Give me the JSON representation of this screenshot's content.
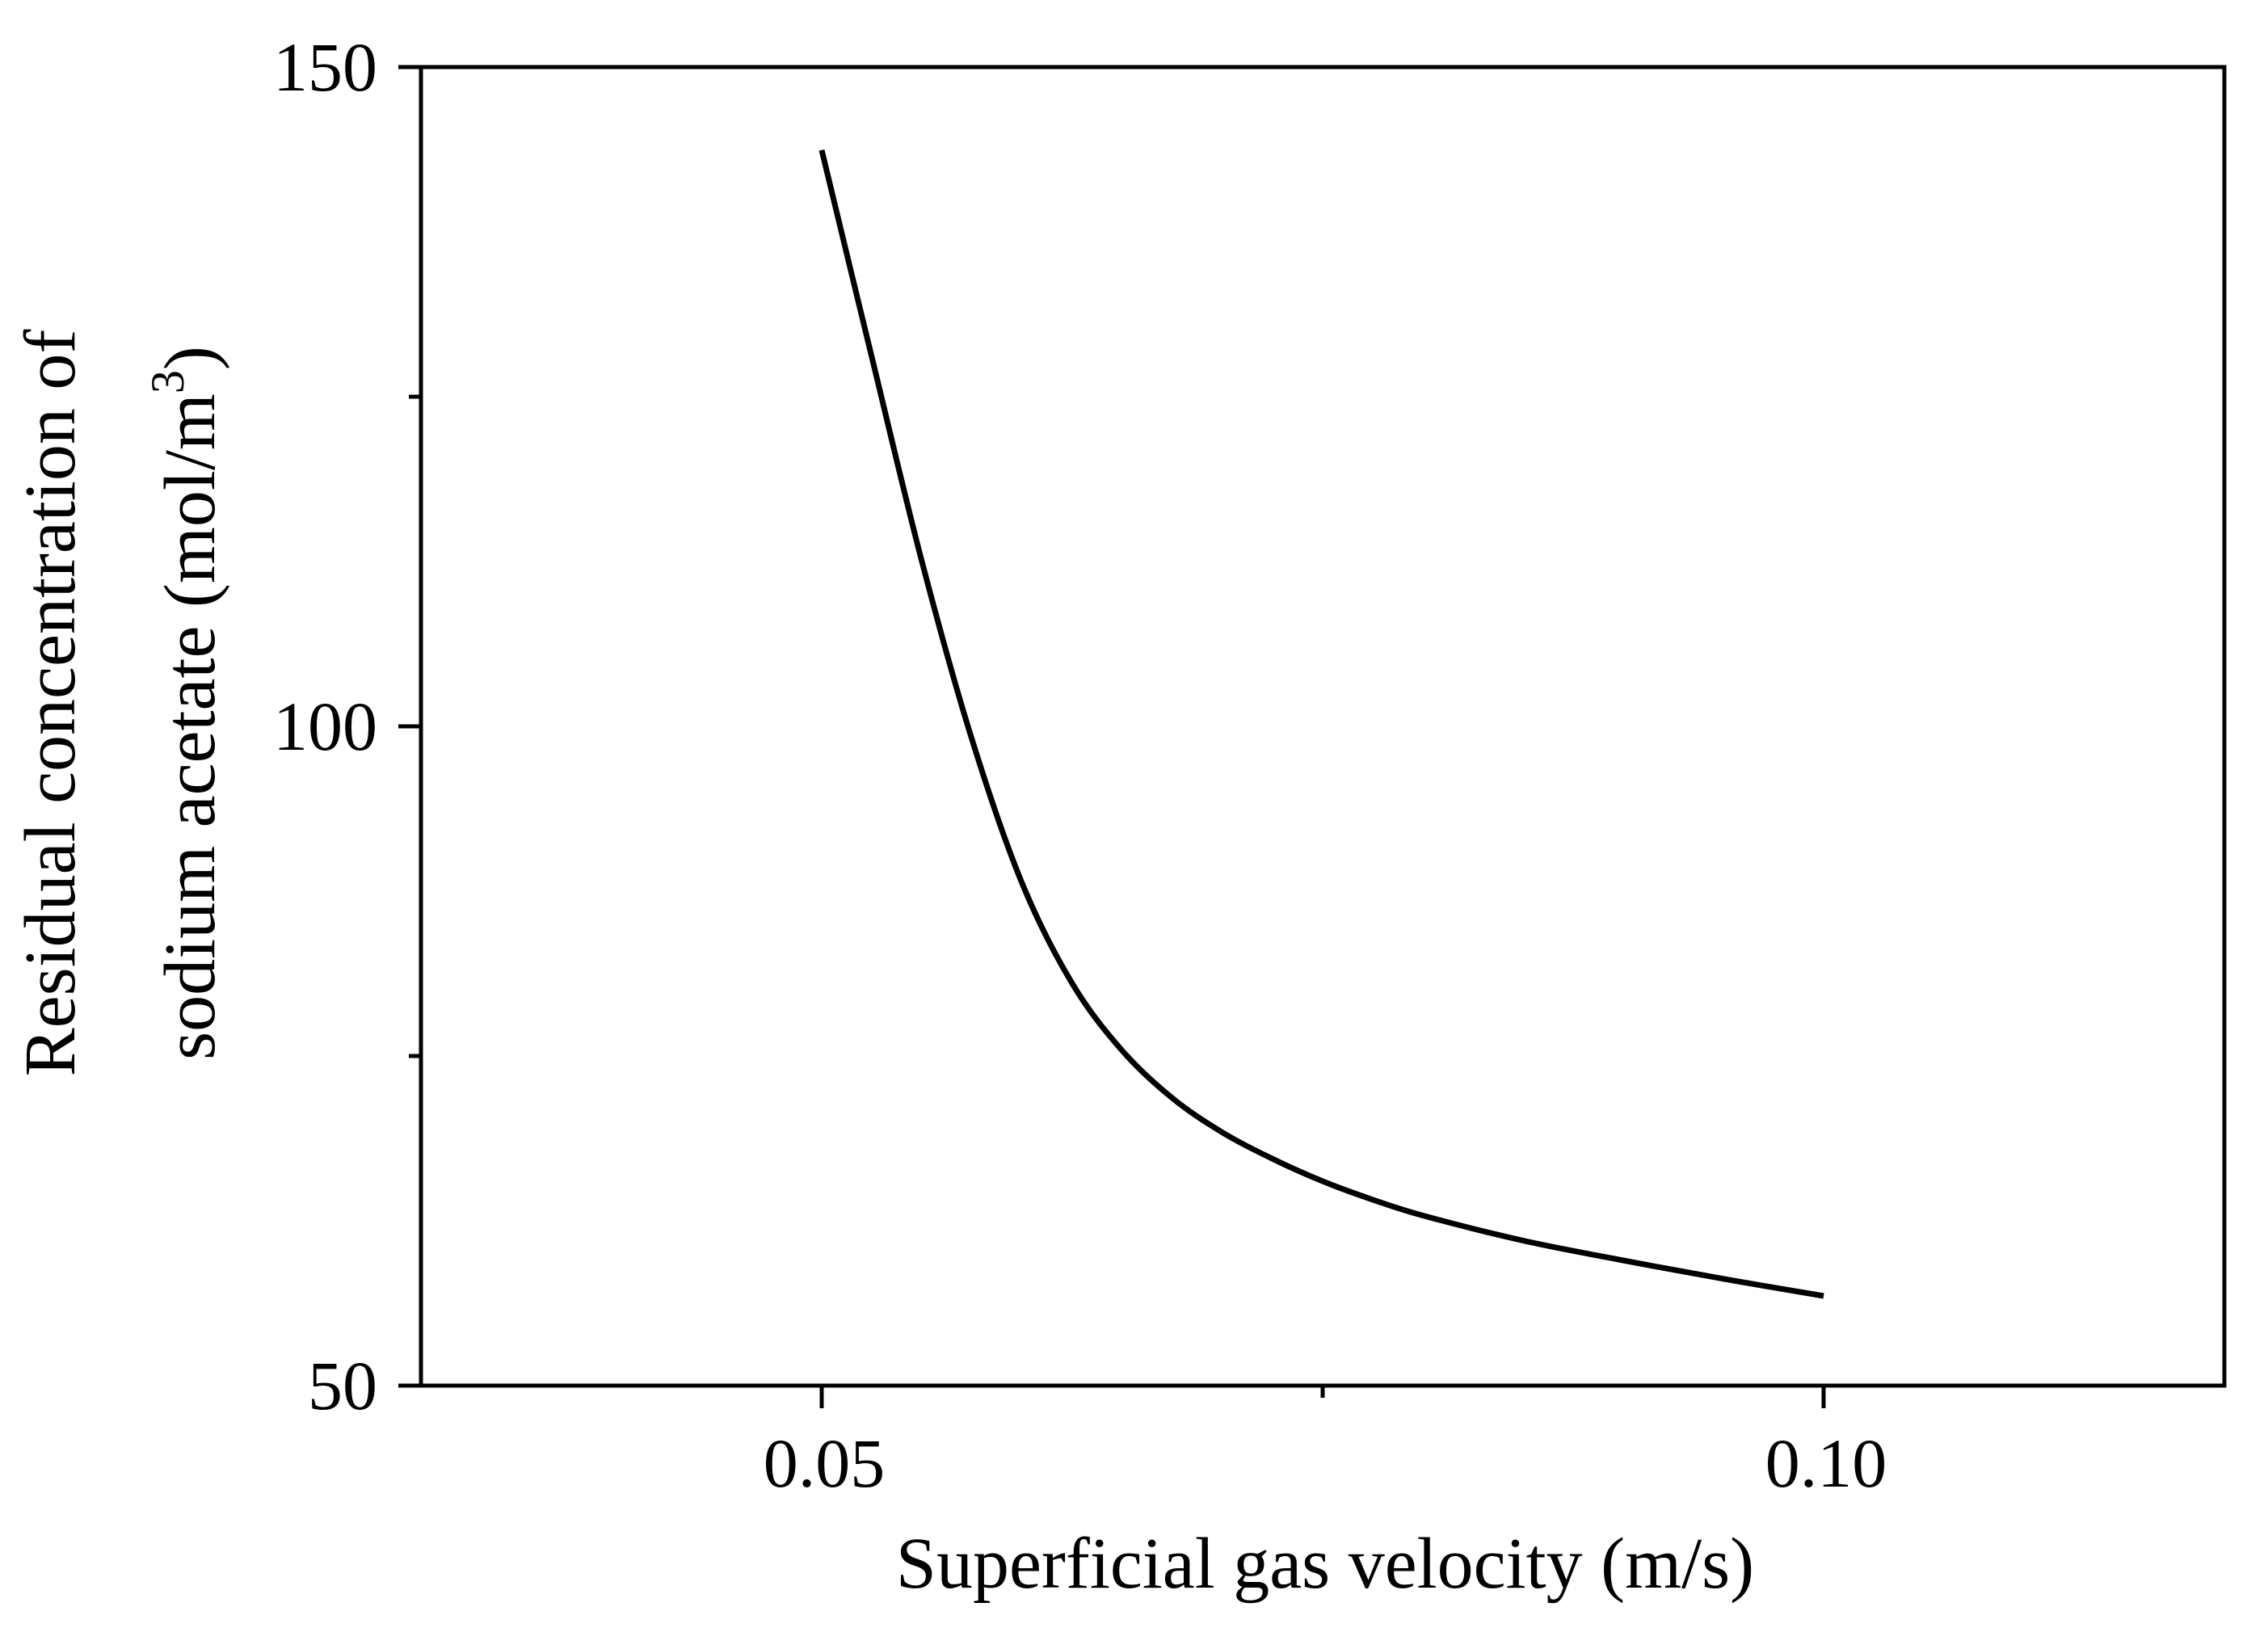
{
  "chart_data": {
    "type": "line",
    "title": "",
    "xlabel": "Superficial gas velocity (m/s)",
    "ylabel_line1": "Residual concentration of",
    "ylabel_line2_prefix": "sodium acetate (mol/m",
    "ylabel_sup": "3",
    "ylabel_close": ")",
    "xlim": [
      0.03,
      0.12
    ],
    "ylim": [
      50,
      150
    ],
    "xticks": [
      {
        "value": 0.05,
        "label": "0.05"
      },
      {
        "value": 0.1,
        "label": "0.10"
      }
    ],
    "x_minor_ticks": [
      0.075
    ],
    "yticks": [
      {
        "value": 50,
        "label": "50"
      },
      {
        "value": 100,
        "label": "100"
      },
      {
        "value": 150,
        "label": "150"
      }
    ],
    "y_minor_ticks": [
      75,
      125
    ],
    "grid": false,
    "series": [
      {
        "name": "Residual concentration",
        "color": "#000000",
        "x": [
          0.05,
          0.0525,
          0.055,
          0.0575,
          0.06,
          0.0625,
          0.065,
          0.0675,
          0.07,
          0.0725,
          0.075,
          0.0775,
          0.08,
          0.085,
          0.09,
          0.095,
          0.1
        ],
        "y": [
          143.7,
          128.0,
          112.5,
          99.0,
          88.1,
          80.5,
          75.4,
          71.8,
          69.2,
          67.2,
          65.5,
          64.1,
          62.9,
          61.0,
          59.5,
          58.1,
          56.8
        ]
      }
    ]
  }
}
